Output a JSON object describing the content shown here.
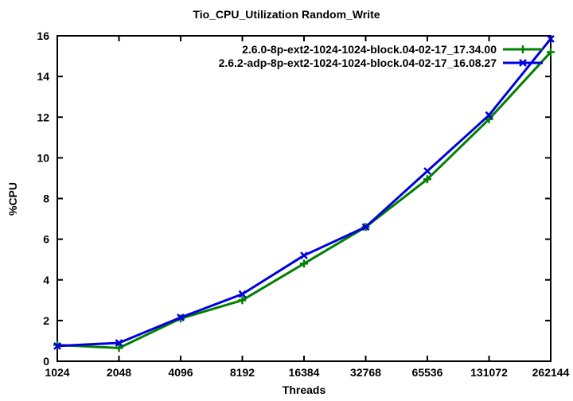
{
  "title": "Tio_CPU_Utilization Random_Write",
  "colors": {
    "axis": "#000000",
    "background": "#ffffff",
    "series_green": "#008000",
    "series_blue": "#0000dd"
  },
  "chart_data": {
    "type": "line",
    "title": "Tio_CPU_Utilization Random_Write",
    "xlabel": "Threads",
    "ylabel": "%CPU",
    "x_scale": "log2",
    "categories": [
      "1024",
      "2048",
      "4096",
      "8192",
      "16384",
      "32768",
      "65536",
      "131072",
      "262144"
    ],
    "y_ticks": [
      "0",
      "2",
      "4",
      "6",
      "8",
      "10",
      "12",
      "14",
      "16"
    ],
    "ylim": [
      0,
      16
    ],
    "grid": false,
    "legend_position": "top-right-inside",
    "series": [
      {
        "name": "2.6.0-8p-ext2-1024-1024-block.04-02-17_17.34.00",
        "color": "#008000",
        "marker": "plus",
        "values": [
          0.8,
          0.65,
          2.1,
          3.0,
          4.8,
          6.6,
          8.95,
          11.9,
          15.2
        ]
      },
      {
        "name": "2.6.2-adp-8p-ext2-1024-1024-block.04-02-17_16.08.27",
        "color": "#0000dd",
        "marker": "x",
        "values": [
          0.75,
          0.9,
          2.15,
          3.3,
          5.2,
          6.6,
          9.35,
          12.1,
          15.85
        ]
      }
    ]
  }
}
